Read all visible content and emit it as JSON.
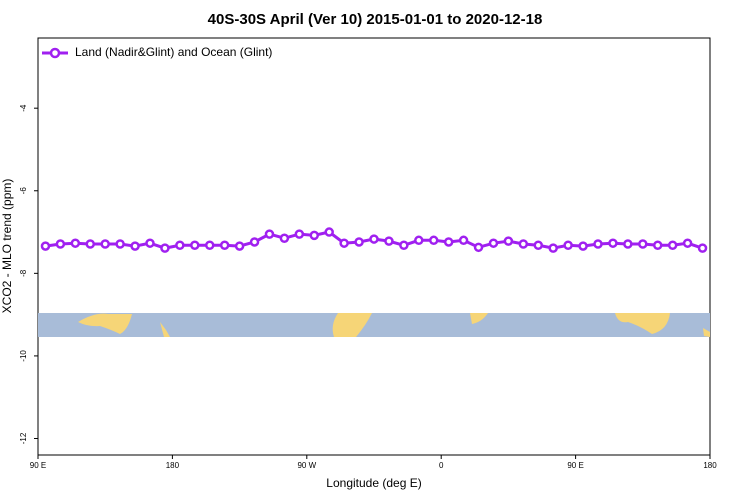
{
  "chart_data": {
    "type": "line",
    "title": "40S-30S April (Ver 10)   2015-01-01 to 2020-12-18",
    "x_label": "Longitude (deg E)",
    "y_label": "XCO2 - MLO trend (ppm)",
    "legend": "top-left",
    "x": [
      95,
      105,
      115,
      125,
      135,
      145,
      155,
      165,
      175,
      185,
      195,
      205,
      215,
      225,
      235,
      245,
      255,
      265,
      275,
      285,
      295,
      305,
      315,
      325,
      335,
      345,
      355,
      365,
      375,
      385,
      395,
      405,
      415,
      425,
      435,
      445,
      455,
      465,
      475,
      485,
      495,
      505,
      515,
      525,
      535
    ],
    "series": [
      {
        "name": "Land (Nadir&Glint) and Ocean (Glint)",
        "color": "#a020f0",
        "values": [
          -7.34,
          -7.29,
          -7.27,
          -7.29,
          -7.29,
          -7.29,
          -7.34,
          -7.27,
          -7.39,
          -7.32,
          -7.32,
          -7.32,
          -7.32,
          -7.34,
          -7.24,
          -7.05,
          -7.15,
          -7.05,
          -7.08,
          -7.0,
          -7.27,
          -7.24,
          -7.17,
          -7.22,
          -7.32,
          -7.2,
          -7.2,
          -7.24,
          -7.2,
          -7.37,
          -7.27,
          -7.22,
          -7.29,
          -7.32,
          -7.39,
          -7.32,
          -7.34,
          -7.29,
          -7.27,
          -7.29,
          -7.29,
          -7.32,
          -7.32,
          -7.27,
          -7.39
        ]
      }
    ],
    "xlim": [
      90,
      540
    ],
    "xticks": [
      {
        "value": 90,
        "label": "90 E"
      },
      {
        "value": 180,
        "label": "180"
      },
      {
        "value": 270,
        "label": "90 W"
      },
      {
        "value": 360,
        "label": "0"
      },
      {
        "value": 450,
        "label": "90 E"
      },
      {
        "value": 540,
        "label": "180"
      }
    ],
    "ylim": [
      -12.4,
      -2.3
    ],
    "yticks": [
      -4,
      -6,
      -8,
      -10,
      -12
    ]
  }
}
